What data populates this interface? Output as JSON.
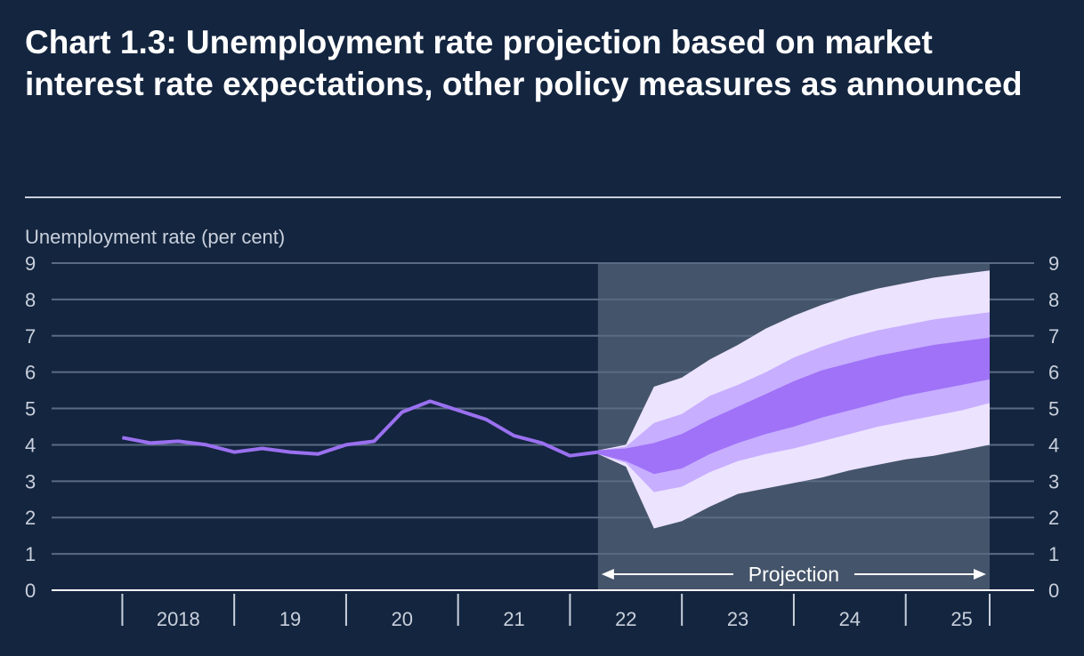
{
  "chart_data": {
    "type": "area",
    "title": "Chart 1.3: Unemployment rate projection based on market interest rate expectations, other policy measures as announced",
    "ylabel": "Unemployment rate (per cent)",
    "ylim": [
      0,
      9
    ],
    "yticks": [
      0,
      1,
      2,
      3,
      4,
      5,
      6,
      7,
      8,
      9
    ],
    "xlim": [
      2017.75,
      2025.75
    ],
    "x_labels": [
      {
        "label": "2018",
        "x": 2018.5
      },
      {
        "label": "19",
        "x": 2019.5
      },
      {
        "label": "20",
        "x": 2020.5
      },
      {
        "label": "21",
        "x": 2021.5
      },
      {
        "label": "22",
        "x": 2022.5
      },
      {
        "label": "23",
        "x": 2023.5
      },
      {
        "label": "24",
        "x": 2024.5
      },
      {
        "label": "25",
        "x": 2025.5
      }
    ],
    "x_dividers": [
      2018,
      2019,
      2020,
      2021,
      2022,
      2023,
      2024,
      2025
    ],
    "grid": true,
    "legend": "none",
    "projection_start": 2022.25,
    "projection_label": "Projection",
    "colors": {
      "background": "#14253f",
      "gridline": "#5b6b84",
      "axis_text": "#c9d0dc",
      "projection_shade": "#44546a",
      "outturn_line": "#9a70f0",
      "band_outer": "#ece3ff",
      "band_middle": "#c7aeff",
      "band_inner": "#9f72f7"
    },
    "series": [
      {
        "kind": "line",
        "x": [
          2018,
          2018.25,
          2018.5,
          2018.75,
          2019,
          2019.25,
          2019.5,
          2019.75,
          2020,
          2020.25,
          2020.5,
          2020.75,
          2021,
          2021.25,
          2021.5,
          2021.75,
          2022,
          2022.25
        ],
        "values": [
          4.2,
          4.05,
          4.1,
          4.0,
          3.8,
          3.9,
          3.8,
          3.75,
          4.0,
          4.1,
          4.9,
          5.2,
          4.95,
          4.7,
          4.25,
          4.05,
          3.7,
          3.8
        ]
      },
      {
        "kind": "fan",
        "x": [
          2022.25,
          2022.5,
          2022.75,
          2023,
          2023.25,
          2023.5,
          2023.75,
          2024,
          2024.25,
          2024.5,
          2024.75,
          2025,
          2025.25,
          2025.5,
          2025.75
        ],
        "outer_low": [
          3.75,
          3.4,
          1.7,
          1.9,
          2.3,
          2.65,
          2.8,
          2.95,
          3.1,
          3.3,
          3.45,
          3.6,
          3.7,
          3.85,
          4.0
        ],
        "outer_high": [
          3.85,
          4.0,
          5.6,
          5.85,
          6.35,
          6.75,
          7.2,
          7.55,
          7.85,
          8.1,
          8.3,
          8.45,
          8.6,
          8.7,
          8.8
        ],
        "middle_low": [
          3.75,
          3.5,
          2.7,
          2.85,
          3.25,
          3.55,
          3.75,
          3.9,
          4.1,
          4.3,
          4.5,
          4.65,
          4.8,
          4.95,
          5.15
        ],
        "middle_high": [
          3.85,
          3.95,
          4.6,
          4.85,
          5.35,
          5.65,
          6.0,
          6.4,
          6.7,
          6.95,
          7.15,
          7.3,
          7.45,
          7.55,
          7.65
        ],
        "inner_low": [
          3.75,
          3.55,
          3.2,
          3.35,
          3.75,
          4.05,
          4.3,
          4.5,
          4.75,
          4.95,
          5.15,
          5.35,
          5.5,
          5.65,
          5.8
        ],
        "inner_high": [
          3.85,
          3.9,
          4.05,
          4.3,
          4.7,
          5.05,
          5.4,
          5.75,
          6.05,
          6.25,
          6.45,
          6.6,
          6.75,
          6.85,
          6.95
        ]
      }
    ]
  }
}
